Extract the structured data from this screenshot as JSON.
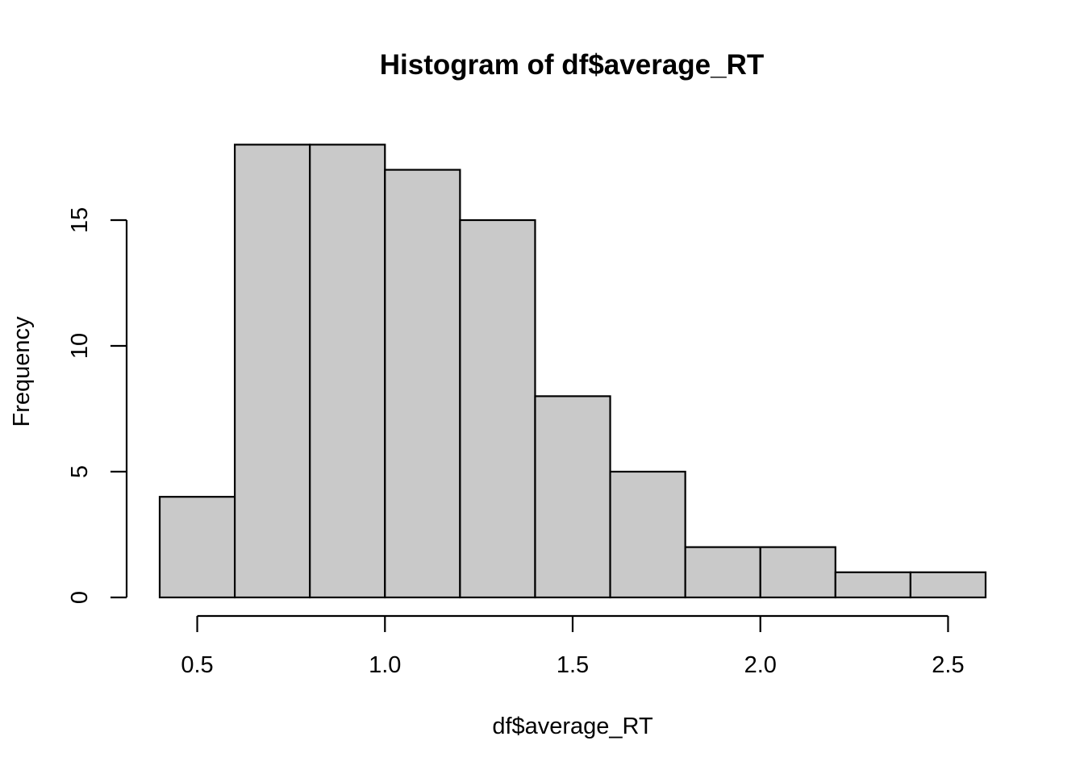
{
  "chart_data": {
    "type": "bar",
    "title": "Histogram of df$average_RT",
    "xlabel": "df$average_RT",
    "ylabel": "Frequency",
    "bins": [
      {
        "x0": 0.4,
        "x1": 0.6,
        "count": 4
      },
      {
        "x0": 0.6,
        "x1": 0.8,
        "count": 18
      },
      {
        "x0": 0.8,
        "x1": 1.0,
        "count": 18
      },
      {
        "x0": 1.0,
        "x1": 1.2,
        "count": 17
      },
      {
        "x0": 1.2,
        "x1": 1.4,
        "count": 15
      },
      {
        "x0": 1.4,
        "x1": 1.6,
        "count": 8
      },
      {
        "x0": 1.6,
        "x1": 1.8,
        "count": 5
      },
      {
        "x0": 1.8,
        "x1": 2.0,
        "count": 2
      },
      {
        "x0": 2.0,
        "x1": 2.2,
        "count": 2
      },
      {
        "x0": 2.2,
        "x1": 2.4,
        "count": 1
      },
      {
        "x0": 2.4,
        "x1": 2.6,
        "count": 1
      }
    ],
    "xticks": [
      {
        "value": 0.5,
        "label": "0.5"
      },
      {
        "value": 1.0,
        "label": "1.0"
      },
      {
        "value": 1.5,
        "label": "1.5"
      },
      {
        "value": 2.0,
        "label": "2.0"
      },
      {
        "value": 2.5,
        "label": "2.5"
      }
    ],
    "yticks": [
      {
        "value": 0,
        "label": "0"
      },
      {
        "value": 5,
        "label": "5"
      },
      {
        "value": 10,
        "label": "10"
      },
      {
        "value": 15,
        "label": "15"
      }
    ],
    "xlim": [
      0.4,
      2.6
    ],
    "ylim": [
      0,
      18
    ],
    "bar_color": "#c9c9c9",
    "grid": false,
    "legend": "none"
  }
}
